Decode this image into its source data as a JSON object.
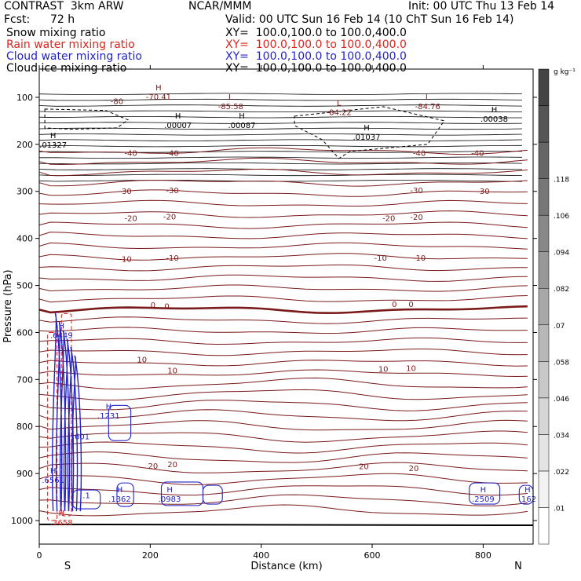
{
  "header": {
    "title": "CONTRAST  3km ARW",
    "org": "NCAR/MMM",
    "init": "Init: 00 UTC Thu 13 Feb 14",
    "fcst_label": "Fcst:",
    "fcst_value": "72 h",
    "valid": "Valid: 00 UTC Sun 16 Feb 14 (10 ChT Sun 16 Feb 14)",
    "fields": [
      {
        "name": "Snow mixing ratio",
        "xy": "XY=  100.0,100.0 to 100.0,400.0",
        "color": "#000000"
      },
      {
        "name": "Rain water mixing ratio",
        "xy": "XY=  100.0,100.0 to 100.0,400.0",
        "color": "#e0241b"
      },
      {
        "name": "Cloud water mixing ratio",
        "xy": "XY=  100.0,100.0 to 100.0,400.0",
        "color": "#2323c8"
      },
      {
        "name": "Cloud ice mixing ratio",
        "xy": "XY=  100.0,100.0 to 100.0,400.0",
        "color": "#000000"
      }
    ]
  },
  "chart_data": {
    "type": "contour",
    "xlabel": "Distance (km)",
    "ylabel": "Pressure (hPa)",
    "xlim": [
      0,
      890
    ],
    "ylim": [
      1050,
      40
    ],
    "x_ticks": [
      0,
      200,
      400,
      600,
      800
    ],
    "y_ticks": [
      100,
      200,
      300,
      400,
      500,
      600,
      700,
      800,
      900,
      1000
    ],
    "endpoint_labels": {
      "left": "S",
      "right": "N"
    },
    "colorbar": {
      "unit": "g kg⁻¹",
      "ticks": [
        ".01",
        ".022",
        ".034",
        ".046",
        ".058",
        ".07",
        ".082",
        ".094",
        ".106",
        ".118"
      ],
      "colors": [
        "#ffffff",
        "#f2f2f2",
        "#e4e4e4",
        "#d6d6d6",
        "#c8c8c8",
        "#b8b8b8",
        "#a8a8a8",
        "#989898",
        "#888888",
        "#777777",
        "#666666",
        "#555555",
        "#444444"
      ]
    },
    "colors": {
      "temperature": "#7a1a1a",
      "rain": "#e0241b",
      "cloud_water": "#2323c8",
      "snow": "#000000",
      "theta": "#000000",
      "ground": "#000000"
    },
    "temperature_labels": [
      {
        "x": 140,
        "p": 108,
        "text": "-80"
      },
      {
        "x": 165,
        "p": 218,
        "text": "-40"
      },
      {
        "x": 240,
        "p": 218,
        "text": "-40"
      },
      {
        "x": 685,
        "p": 218,
        "text": "-40"
      },
      {
        "x": 790,
        "p": 218,
        "text": "-40"
      },
      {
        "x": 155,
        "p": 299,
        "text": "-30"
      },
      {
        "x": 240,
        "p": 297,
        "text": "-30"
      },
      {
        "x": 680,
        "p": 297,
        "text": "-30"
      },
      {
        "x": 800,
        "p": 299,
        "text": "-30"
      },
      {
        "x": 165,
        "p": 356,
        "text": "-20"
      },
      {
        "x": 235,
        "p": 353,
        "text": "-20"
      },
      {
        "x": 630,
        "p": 356,
        "text": "-20"
      },
      {
        "x": 680,
        "p": 354,
        "text": "-20"
      },
      {
        "x": 155,
        "p": 443,
        "text": "-10"
      },
      {
        "x": 240,
        "p": 441,
        "text": "-10"
      },
      {
        "x": 615,
        "p": 441,
        "text": "-10"
      },
      {
        "x": 685,
        "p": 441,
        "text": "-10"
      },
      {
        "x": 205,
        "p": 541,
        "text": "0"
      },
      {
        "x": 230,
        "p": 543,
        "text": "0"
      },
      {
        "x": 640,
        "p": 539,
        "text": "0"
      },
      {
        "x": 670,
        "p": 539,
        "text": "0"
      },
      {
        "x": 185,
        "p": 657,
        "text": "10"
      },
      {
        "x": 240,
        "p": 680,
        "text": "10"
      },
      {
        "x": 620,
        "p": 677,
        "text": "10"
      },
      {
        "x": 670,
        "p": 675,
        "text": "10"
      },
      {
        "x": 205,
        "p": 883,
        "text": "20"
      },
      {
        "x": 240,
        "p": 880,
        "text": "20"
      },
      {
        "x": 585,
        "p": 884,
        "text": "20"
      },
      {
        "x": 675,
        "p": 888,
        "text": "20"
      }
    ],
    "extrema": [
      {
        "x": 215,
        "p": 90,
        "kind": "H",
        "value": "-70.41",
        "color": "#7a1a1a"
      },
      {
        "x": 345,
        "p": 110,
        "kind": "L",
        "value": "-85.58",
        "color": "#7a1a1a"
      },
      {
        "x": 540,
        "p": 123,
        "kind": "L",
        "value": "-84.22",
        "color": "#7a1a1a"
      },
      {
        "x": 700,
        "p": 110,
        "kind": "L",
        "value": "-84.76",
        "color": "#7a1a1a"
      },
      {
        "x": 250,
        "p": 150,
        "kind": "H",
        "value": ".00007",
        "color": "#000000"
      },
      {
        "x": 365,
        "p": 150,
        "kind": "H",
        "value": ".00087",
        "color": "#000000"
      },
      {
        "x": 590,
        "p": 175,
        "kind": "H",
        "value": ".01037",
        "color": "#000000"
      },
      {
        "x": 820,
        "p": 137,
        "kind": "H",
        "value": ".00038",
        "color": "#000000"
      },
      {
        "x": 25,
        "p": 192,
        "kind": "H",
        "value": ".01327",
        "color": "#000000"
      },
      {
        "x": 40,
        "p": 597,
        "kind": "H",
        "value": ".6449",
        "color": "#2323c8"
      },
      {
        "x": 125,
        "p": 768,
        "kind": "H",
        "value": ".1231",
        "color": "#2323c8"
      },
      {
        "x": 75,
        "p": 812,
        "kind": "",
        "value": ".601",
        "color": "#2323c8"
      },
      {
        "x": 25,
        "p": 905,
        "kind": "H",
        "value": ".6561",
        "color": "#2323c8"
      },
      {
        "x": 85,
        "p": 937,
        "kind": "",
        "value": ".1",
        "color": "#2323c8"
      },
      {
        "x": 145,
        "p": 945,
        "kind": "H",
        "value": ".1362",
        "color": "#2323c8"
      },
      {
        "x": 235,
        "p": 945,
        "kind": "H",
        "value": ".0983",
        "color": "#2323c8"
      },
      {
        "x": 800,
        "p": 945,
        "kind": "H",
        "value": ".2509",
        "color": "#2323c8"
      },
      {
        "x": 880,
        "p": 945,
        "kind": "H",
        "value": ".162",
        "color": "#2323c8"
      },
      {
        "x": 40,
        "p": 995,
        "kind": "H",
        "value": ".3658",
        "color": "#e0241b"
      }
    ]
  }
}
